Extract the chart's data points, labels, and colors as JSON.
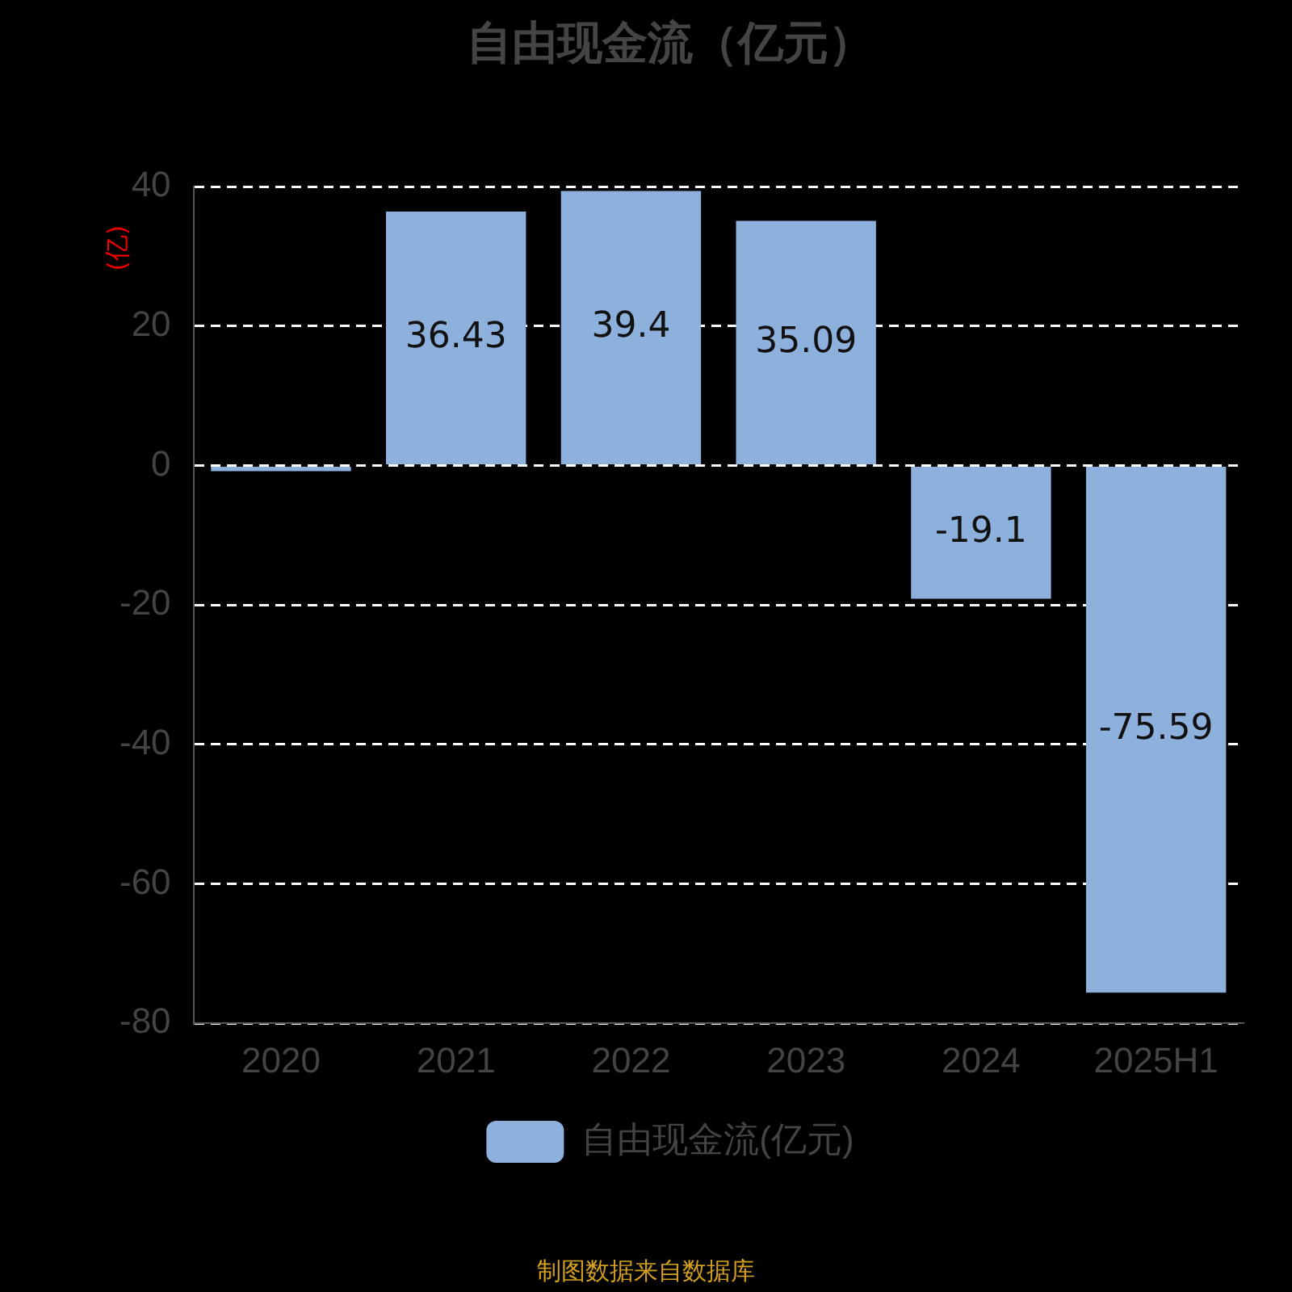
{
  "chart_data": {
    "type": "bar",
    "title": "自由现金流（亿元）",
    "ylabel": "(亿)",
    "categories": [
      "2020",
      "2021",
      "2022",
      "2023",
      "2024",
      "2025H1"
    ],
    "series": [
      {
        "name": "自由现金流(亿元)",
        "color": "#8eb0dc",
        "values": [
          -0.8,
          36.43,
          39.4,
          35.09,
          -19.1,
          -75.59
        ],
        "value_labels": [
          null,
          "36.43",
          "39.4",
          "35.09",
          "-19.1",
          "-75.59"
        ]
      }
    ],
    "ylim": [
      -80,
      40
    ],
    "yticks": [
      -80,
      -60,
      -40,
      -20,
      0,
      20,
      40
    ],
    "grid": "y",
    "legend": "bottom",
    "annotations": [
      "制图数据来自数据库"
    ]
  }
}
